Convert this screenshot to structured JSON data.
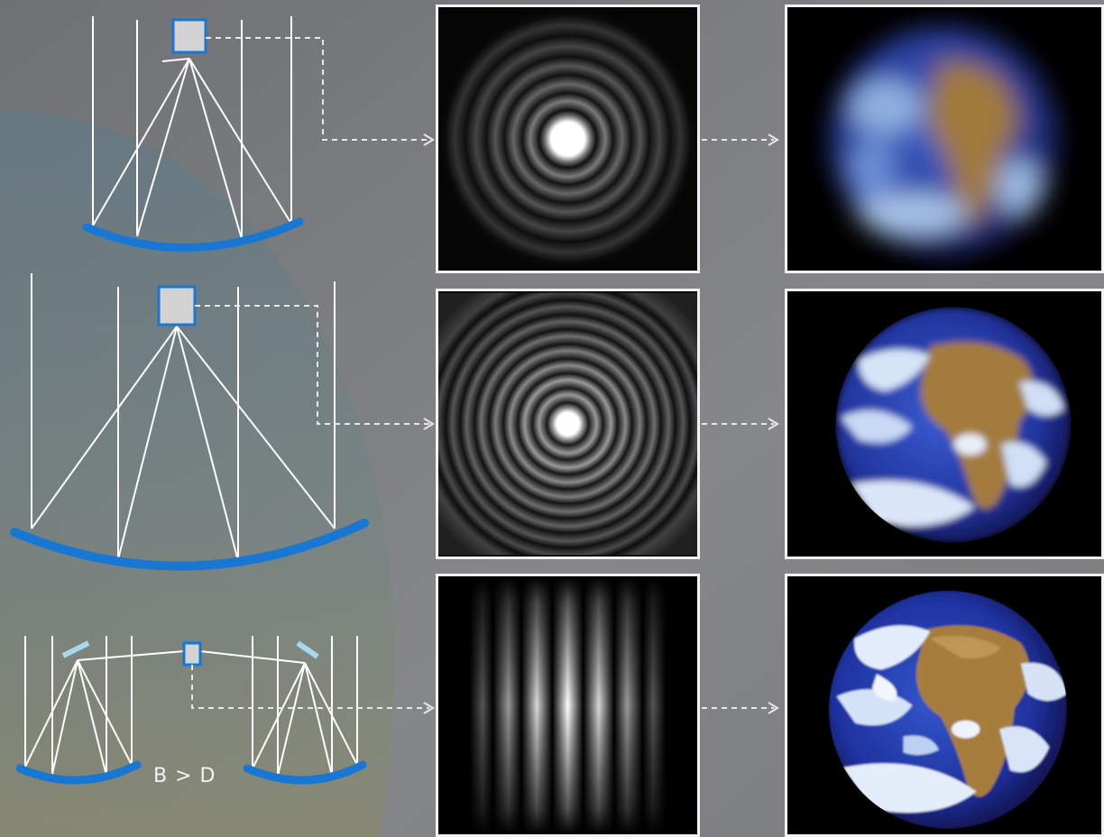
{
  "bottom_label": "B > D",
  "colors": {
    "mirror": "#1877d2",
    "detector_fill": "#d3d3d3",
    "detector_border": "#1877d2",
    "rays": "#ffffff",
    "panel_border": "#f2f2f2",
    "background": "#7d7f82"
  },
  "rows": [
    {
      "name": "small-telescope",
      "psf": "airy-wide",
      "image": "earth-blurry"
    },
    {
      "name": "large-telescope",
      "psf": "airy-narrow",
      "image": "earth-sharper"
    },
    {
      "name": "interferometer",
      "psf": "fringes",
      "image": "earth-sharp"
    }
  ]
}
